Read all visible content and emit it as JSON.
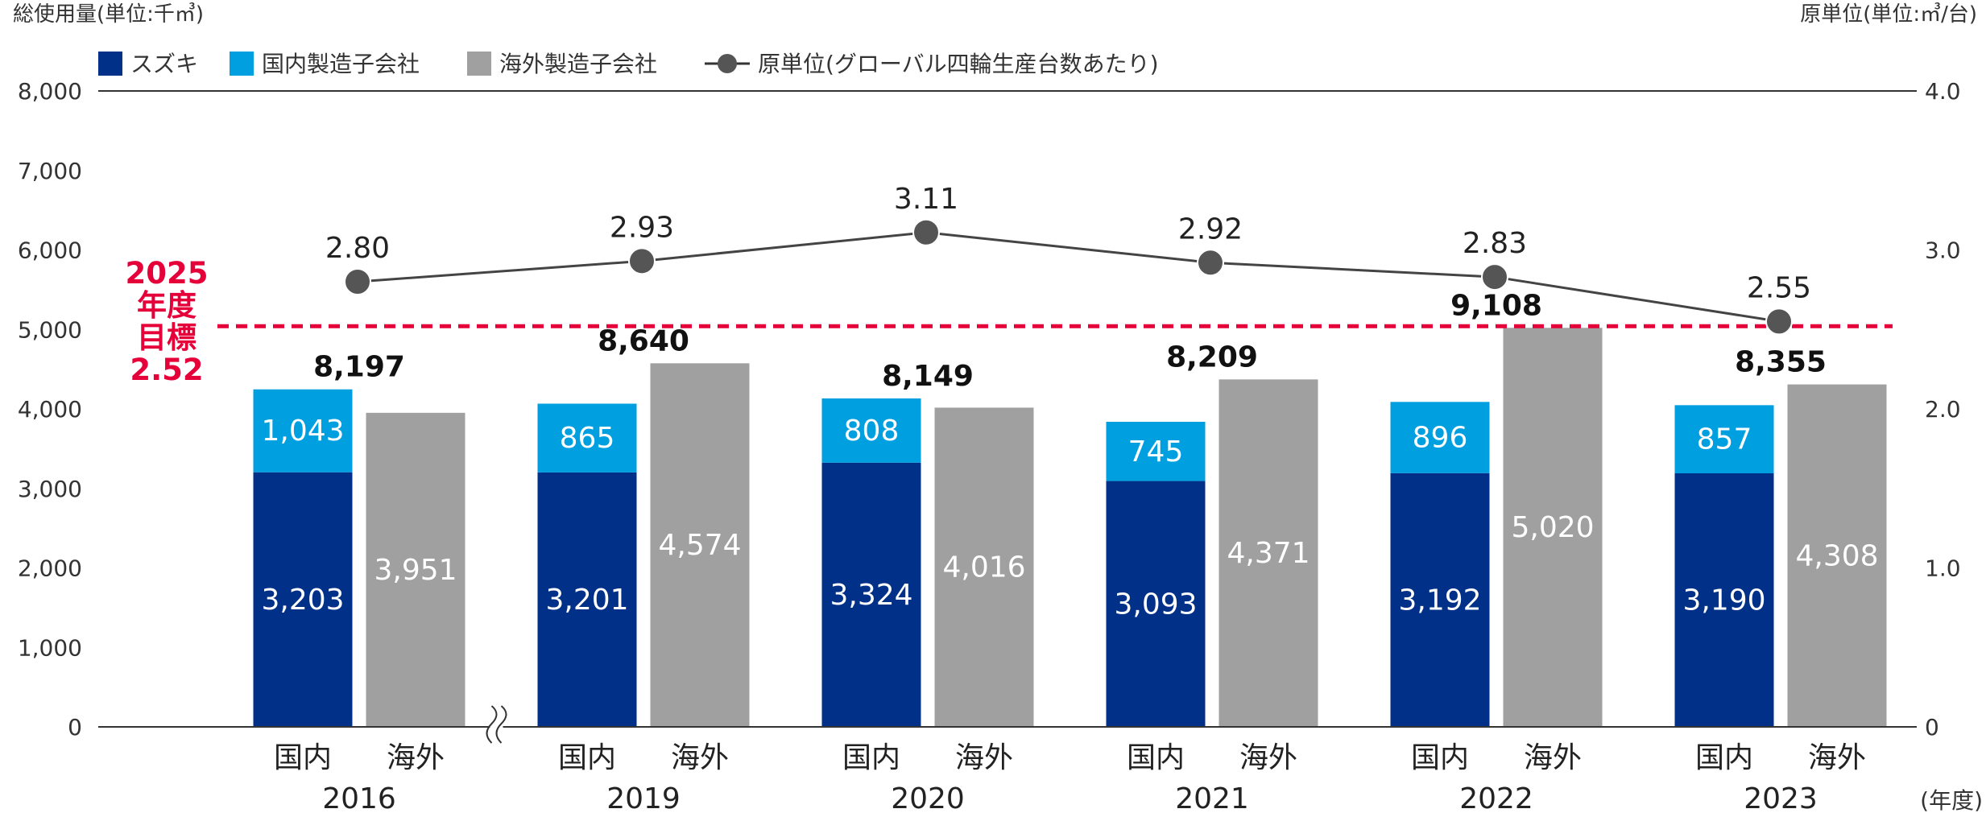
{
  "chart_data": {
    "type": "bar",
    "left_axis_title": "総使用量(単位:千㎥)",
    "right_axis_title": "原単位(単位:㎥/台)",
    "x_unit_label": "(年度)",
    "ylim": [
      0,
      8000
    ],
    "y_ticks": [
      "0",
      "1,000",
      "2,000",
      "3,000",
      "4,000",
      "5,000",
      "6,000",
      "7,000",
      "8,000"
    ],
    "y2lim": [
      0,
      4.0
    ],
    "y2_ticks": [
      "0",
      "1.0",
      "2.0",
      "3.0",
      "4.0"
    ],
    "legend": [
      {
        "label": "スズキ",
        "color": "#003087",
        "marker": "square"
      },
      {
        "label": "国内製造子会社",
        "color": "#009fe0",
        "marker": "square"
      },
      {
        "label": "海外製造子会社",
        "color": "#a0a0a0",
        "marker": "square"
      },
      {
        "label": "原単位(グローバル四輪生産台数あたり)",
        "color": "#333333",
        "marker": "line-dot"
      }
    ],
    "categories": [
      "2016",
      "2019",
      "2020",
      "2021",
      "2022",
      "2023"
    ],
    "bar_labels": [
      "国内",
      "海外"
    ],
    "series": [
      {
        "name": "スズキ",
        "values": [
          3203,
          3201,
          3324,
          3093,
          3192,
          3190
        ],
        "labels": [
          "3,203",
          "3,201",
          "3,324",
          "3,093",
          "3,192",
          "3,190"
        ],
        "color": "#003087"
      },
      {
        "name": "国内製造子会社",
        "values": [
          1043,
          865,
          808,
          745,
          896,
          857
        ],
        "labels": [
          "1,043",
          "865",
          "808",
          "745",
          "896",
          "857"
        ],
        "color": "#009fe0"
      },
      {
        "name": "海外製造子会社",
        "values": [
          3951,
          4574,
          4016,
          4371,
          5020,
          4308
        ],
        "labels": [
          "3,951",
          "4,574",
          "4,016",
          "4,371",
          "5,020",
          "4,308"
        ],
        "color": "#a0a0a0"
      }
    ],
    "totals": [
      "8,197",
      "8,640",
      "8,149",
      "8,209",
      "9,108",
      "8,355"
    ],
    "intensity": {
      "name": "原単位(グローバル四輪生産台数あたり)",
      "values": [
        2.8,
        2.93,
        3.11,
        2.92,
        2.83,
        2.55
      ],
      "labels": [
        "2.80",
        "2.93",
        "3.11",
        "2.92",
        "2.83",
        "2.55"
      ],
      "color": "#333333"
    },
    "target": {
      "value": 2.52,
      "lines": [
        "2025",
        "年度",
        "目標",
        "2.52"
      ],
      "color": "#e50039"
    },
    "axis_break_between": [
      "2016",
      "2019"
    ]
  }
}
